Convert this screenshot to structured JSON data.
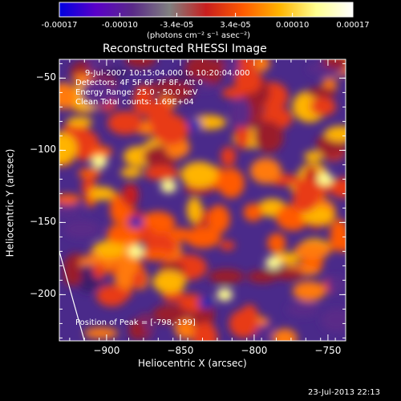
{
  "colorbar": {
    "ticks": [
      "-0.00017",
      "-0.00010",
      "-3.4e-05",
      "3.4e-05",
      "0.00010",
      "0.00017"
    ],
    "tick_values": [
      -0.00017,
      -0.0001,
      -3.4e-05,
      3.4e-05,
      0.0001,
      0.00017
    ],
    "range": [
      -0.00017,
      0.00017
    ],
    "units_label": "(photons cm⁻² s⁻¹ asec⁻²)",
    "colors": [
      "#0000e0",
      "#5a00c8",
      "#5a2a88",
      "#808080",
      "#c81e1e",
      "#ff5a00",
      "#ffb400",
      "#ffff90",
      "#ffffff"
    ]
  },
  "title": "Reconstructed RHESSI Image",
  "info": {
    "line1": "9-Jul-2007 10:15:04.000 to 10:20:04.000",
    "line2": "Detectors: 4F 5F 6F 7F 8F, Att 0",
    "line3": "Energy Range: 25.0 - 50.0 keV",
    "line4": "Clean     Total counts: 1.69E+04"
  },
  "peak_text": "Position of Peak = [-798,-199]",
  "xlabel": "Heliocentric X (arcsec)",
  "ylabel": "Heliocentric Y (arcsec)",
  "timestamp": "23-Jul-2013 22:13",
  "chart_data": {
    "type": "heatmap",
    "title": "Reconstructed RHESSI Image",
    "xlabel": "Heliocentric X (arcsec)",
    "ylabel": "Heliocentric Y (arcsec)",
    "xlim": [
      -932,
      -738
    ],
    "ylim": [
      -232,
      -37
    ],
    "xticks": [
      -900,
      -850,
      -800,
      -750
    ],
    "yticks": [
      -200,
      -150,
      -100,
      -50
    ],
    "xtick_labels": [
      "−900",
      "−850",
      "−800",
      "−750"
    ],
    "ytick_labels": [
      "−200",
      "−150",
      "−100",
      "−50"
    ],
    "peak": [
      -798,
      -199
    ],
    "limb_curve": [
      [
        -932,
        -170
      ],
      [
        -915,
        -232
      ]
    ]
  }
}
